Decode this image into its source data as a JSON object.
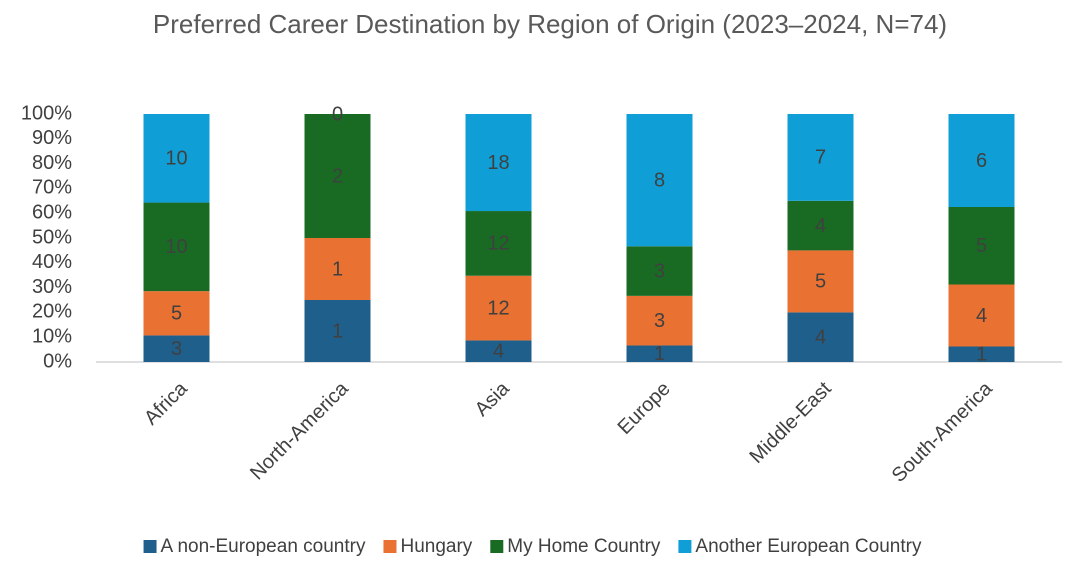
{
  "chart_data": {
    "type": "bar",
    "stacking": "percent",
    "title": "Preferred Career Destination by Region of Origin (2023–2024, N=74)",
    "categories": [
      "Africa",
      "North-America",
      "Asia",
      "Europe",
      "Middle-East",
      "South-America"
    ],
    "series": [
      {
        "name": "A non-European country",
        "color": "#1f5f8b",
        "values": [
          3,
          1,
          4,
          1,
          4,
          1
        ]
      },
      {
        "name": "Hungary",
        "color": "#e97132",
        "values": [
          5,
          1,
          12,
          3,
          5,
          4
        ]
      },
      {
        "name": "My Home Country",
        "color": "#196b24",
        "values": [
          10,
          2,
          12,
          3,
          4,
          5
        ]
      },
      {
        "name": "Another European Country",
        "color": "#0f9ed5",
        "values": [
          10,
          0,
          18,
          8,
          7,
          6
        ]
      }
    ],
    "ylim": [
      0,
      100
    ],
    "yticks": [
      {
        "value": 0,
        "label": "0%"
      },
      {
        "value": 10,
        "label": "10%"
      },
      {
        "value": 20,
        "label": "20%"
      },
      {
        "value": 30,
        "label": "30%"
      },
      {
        "value": 40,
        "label": "40%"
      },
      {
        "value": 50,
        "label": "50%"
      },
      {
        "value": 60,
        "label": "60%"
      },
      {
        "value": 70,
        "label": "70%"
      },
      {
        "value": 80,
        "label": "80%"
      },
      {
        "value": 90,
        "label": "90%"
      },
      {
        "value": 100,
        "label": "100%"
      }
    ],
    "grid": false,
    "legend": "bottom"
  }
}
